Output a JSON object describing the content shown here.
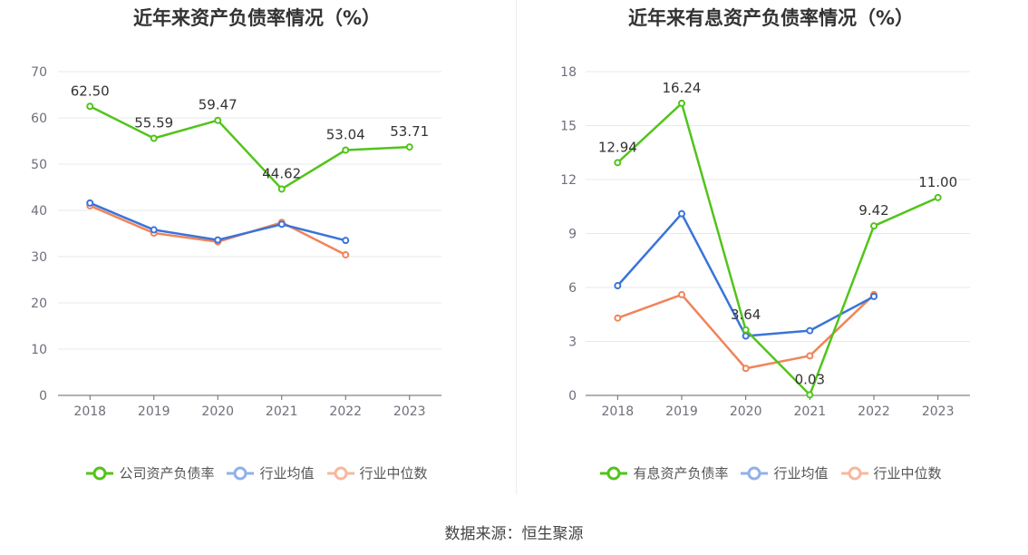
{
  "footer": {
    "source_text": "数据来源：恒生聚源"
  },
  "colors": {
    "green": "#52c41a",
    "blue": "#3a74d8",
    "orange": "#f0845a",
    "grid": "#e6e8ef",
    "axis": "#666666"
  },
  "chart_data": [
    {
      "type": "line",
      "title": "近年来资产负债率情况（%）",
      "categories": [
        "2018",
        "2019",
        "2020",
        "2021",
        "2022",
        "2023"
      ],
      "ylim": [
        0,
        70
      ],
      "yticks": [
        0,
        10,
        20,
        30,
        40,
        50,
        60,
        70
      ],
      "series": [
        {
          "name": "公司资产负债率",
          "color": "#52c41a",
          "values": [
            62.5,
            55.59,
            59.47,
            44.62,
            53.04,
            53.71
          ],
          "labels": [
            "62.50",
            "55.59",
            "59.47",
            "44.62",
            "53.04",
            "53.71"
          ]
        },
        {
          "name": "行业均值",
          "color": "#3a74d8",
          "values": [
            41.6,
            35.8,
            33.6,
            37.0,
            33.5,
            null
          ]
        },
        {
          "name": "行业中位数",
          "color": "#f0845a",
          "values": [
            41.0,
            35.1,
            33.2,
            37.4,
            30.4,
            null
          ]
        }
      ]
    },
    {
      "type": "line",
      "title": "近年来有息资产负债率情况（%）",
      "categories": [
        "2018",
        "2019",
        "2020",
        "2021",
        "2022",
        "2023"
      ],
      "ylim": [
        0,
        18
      ],
      "yticks": [
        0,
        3,
        6,
        9,
        12,
        15,
        18
      ],
      "series": [
        {
          "name": "有息资产负债率",
          "color": "#52c41a",
          "values": [
            12.94,
            16.24,
            3.64,
            0.03,
            9.42,
            11.0
          ],
          "labels": [
            "12.94",
            "16.24",
            "3.64",
            "0.03",
            "9.42",
            "11.00"
          ]
        },
        {
          "name": "行业均值",
          "color": "#3a74d8",
          "values": [
            6.1,
            10.1,
            3.3,
            3.6,
            5.5,
            null
          ]
        },
        {
          "name": "行业中位数",
          "color": "#f0845a",
          "values": [
            4.3,
            5.6,
            1.5,
            2.2,
            5.6,
            null
          ]
        }
      ]
    }
  ]
}
